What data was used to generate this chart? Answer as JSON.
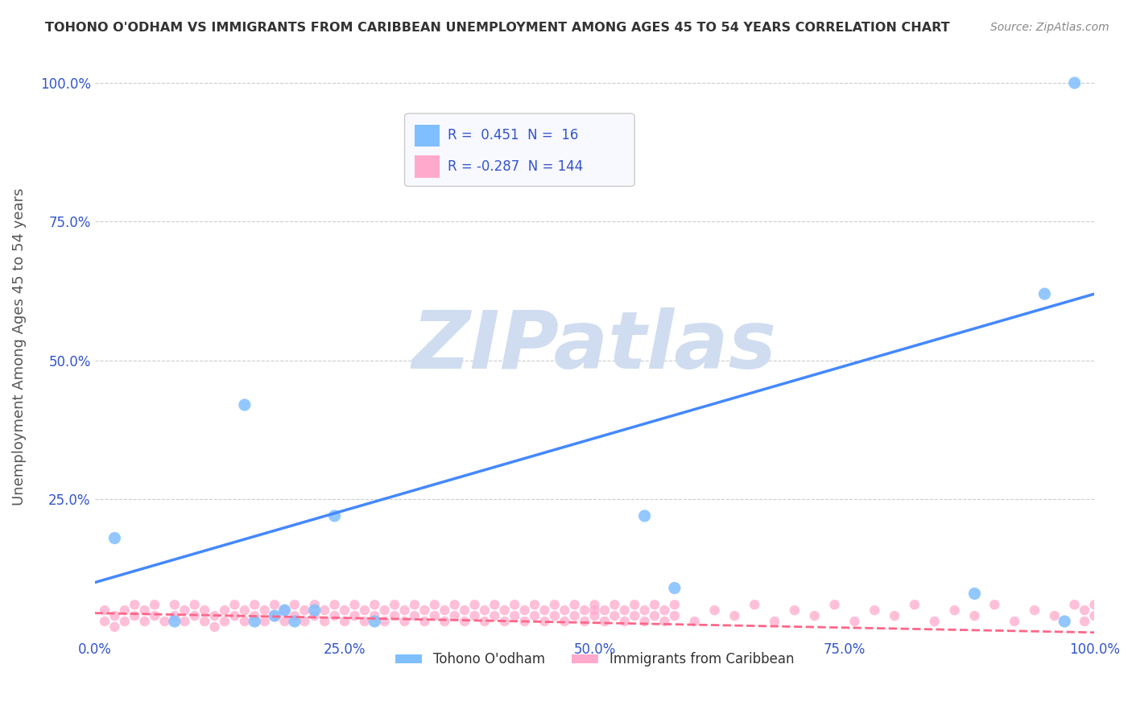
{
  "title": "TOHONO O'ODHAM VS IMMIGRANTS FROM CARIBBEAN UNEMPLOYMENT AMONG AGES 45 TO 54 YEARS CORRELATION CHART",
  "source": "Source: ZipAtlas.com",
  "xlabel_bottom": "",
  "ylabel": "Unemployment Among Ages 45 to 54 years",
  "watermark": "ZIPatlas",
  "xmin": 0.0,
  "xmax": 1.0,
  "ymin": 0.0,
  "ymax": 1.05,
  "xticks": [
    0.0,
    0.25,
    0.5,
    0.75,
    1.0
  ],
  "xtick_labels": [
    "0.0%",
    "25.0%",
    "50.0%",
    "75.0%",
    "100.0%"
  ],
  "yticks": [
    0.0,
    0.25,
    0.5,
    0.75,
    1.0
  ],
  "ytick_labels": [
    "",
    "25.0%",
    "50.0%",
    "75.0%",
    "100.0%"
  ],
  "series1_name": "Tohono O'odham",
  "series1_color": "#7fbfff",
  "series1_R": 0.451,
  "series1_N": 16,
  "series1_x": [
    0.02,
    0.08,
    0.15,
    0.16,
    0.18,
    0.19,
    0.2,
    0.22,
    0.24,
    0.28,
    0.55,
    0.58,
    0.88,
    0.95,
    0.97,
    0.98
  ],
  "series1_y": [
    0.18,
    0.03,
    0.42,
    0.03,
    0.04,
    0.05,
    0.03,
    0.05,
    0.22,
    0.03,
    0.22,
    0.09,
    0.08,
    0.62,
    0.03,
    1.0
  ],
  "series2_name": "Immigrants from Caribbean",
  "series2_color": "#ffaacc",
  "series2_R": -0.287,
  "series2_N": 144,
  "series2_x": [
    0.01,
    0.01,
    0.02,
    0.02,
    0.03,
    0.03,
    0.04,
    0.04,
    0.05,
    0.05,
    0.06,
    0.06,
    0.07,
    0.08,
    0.08,
    0.09,
    0.09,
    0.1,
    0.1,
    0.11,
    0.11,
    0.12,
    0.12,
    0.13,
    0.13,
    0.14,
    0.14,
    0.15,
    0.15,
    0.16,
    0.16,
    0.17,
    0.17,
    0.18,
    0.18,
    0.19,
    0.19,
    0.2,
    0.2,
    0.21,
    0.21,
    0.22,
    0.22,
    0.23,
    0.23,
    0.24,
    0.24,
    0.25,
    0.25,
    0.26,
    0.26,
    0.27,
    0.27,
    0.28,
    0.28,
    0.29,
    0.29,
    0.3,
    0.3,
    0.31,
    0.31,
    0.32,
    0.32,
    0.33,
    0.33,
    0.34,
    0.34,
    0.35,
    0.35,
    0.36,
    0.36,
    0.37,
    0.37,
    0.38,
    0.38,
    0.39,
    0.39,
    0.4,
    0.4,
    0.41,
    0.41,
    0.42,
    0.42,
    0.43,
    0.43,
    0.44,
    0.44,
    0.45,
    0.45,
    0.46,
    0.46,
    0.47,
    0.47,
    0.48,
    0.48,
    0.49,
    0.49,
    0.5,
    0.5,
    0.51,
    0.51,
    0.52,
    0.52,
    0.53,
    0.53,
    0.54,
    0.54,
    0.55,
    0.55,
    0.56,
    0.56,
    0.57,
    0.57,
    0.58,
    0.58,
    0.6,
    0.62,
    0.64,
    0.66,
    0.68,
    0.7,
    0.72,
    0.74,
    0.76,
    0.78,
    0.8,
    0.82,
    0.84,
    0.86,
    0.88,
    0.9,
    0.92,
    0.94,
    0.96,
    0.98,
    0.99,
    0.99,
    1.0,
    1.0,
    0.5
  ],
  "series2_y": [
    0.03,
    0.05,
    0.02,
    0.04,
    0.03,
    0.05,
    0.04,
    0.06,
    0.03,
    0.05,
    0.04,
    0.06,
    0.03,
    0.04,
    0.06,
    0.03,
    0.05,
    0.04,
    0.06,
    0.03,
    0.05,
    0.04,
    0.02,
    0.03,
    0.05,
    0.04,
    0.06,
    0.03,
    0.05,
    0.04,
    0.06,
    0.03,
    0.05,
    0.04,
    0.06,
    0.03,
    0.05,
    0.04,
    0.06,
    0.03,
    0.05,
    0.04,
    0.06,
    0.03,
    0.05,
    0.04,
    0.06,
    0.03,
    0.05,
    0.04,
    0.06,
    0.03,
    0.05,
    0.04,
    0.06,
    0.03,
    0.05,
    0.04,
    0.06,
    0.03,
    0.05,
    0.04,
    0.06,
    0.03,
    0.05,
    0.04,
    0.06,
    0.03,
    0.05,
    0.04,
    0.06,
    0.03,
    0.05,
    0.04,
    0.06,
    0.03,
    0.05,
    0.04,
    0.06,
    0.03,
    0.05,
    0.04,
    0.06,
    0.03,
    0.05,
    0.04,
    0.06,
    0.03,
    0.05,
    0.04,
    0.06,
    0.03,
    0.05,
    0.04,
    0.06,
    0.03,
    0.05,
    0.04,
    0.06,
    0.03,
    0.05,
    0.04,
    0.06,
    0.03,
    0.05,
    0.04,
    0.06,
    0.03,
    0.05,
    0.04,
    0.06,
    0.03,
    0.05,
    0.04,
    0.06,
    0.03,
    0.05,
    0.04,
    0.06,
    0.03,
    0.05,
    0.04,
    0.06,
    0.03,
    0.05,
    0.04,
    0.06,
    0.03,
    0.05,
    0.04,
    0.06,
    0.03,
    0.05,
    0.04,
    0.06,
    0.03,
    0.05,
    0.04,
    0.06,
    0.05
  ],
  "line1_x": [
    0.0,
    1.0
  ],
  "line1_y_start": 0.1,
  "line1_y_end": 0.62,
  "line2_x": [
    0.0,
    1.0
  ],
  "line2_y_start": 0.045,
  "line2_y_end": 0.01,
  "line1_color": "#4488ff",
  "line2_color": "#ff6688",
  "background_color": "#ffffff",
  "grid_color": "#cccccc",
  "legend_box_color": "#f0f0f8",
  "legend_text_color": "#3355cc",
  "title_color": "#333333",
  "ylabel_color": "#555555",
  "watermark_color": "#d0ddf0",
  "axis_label_color": "#3355cc"
}
